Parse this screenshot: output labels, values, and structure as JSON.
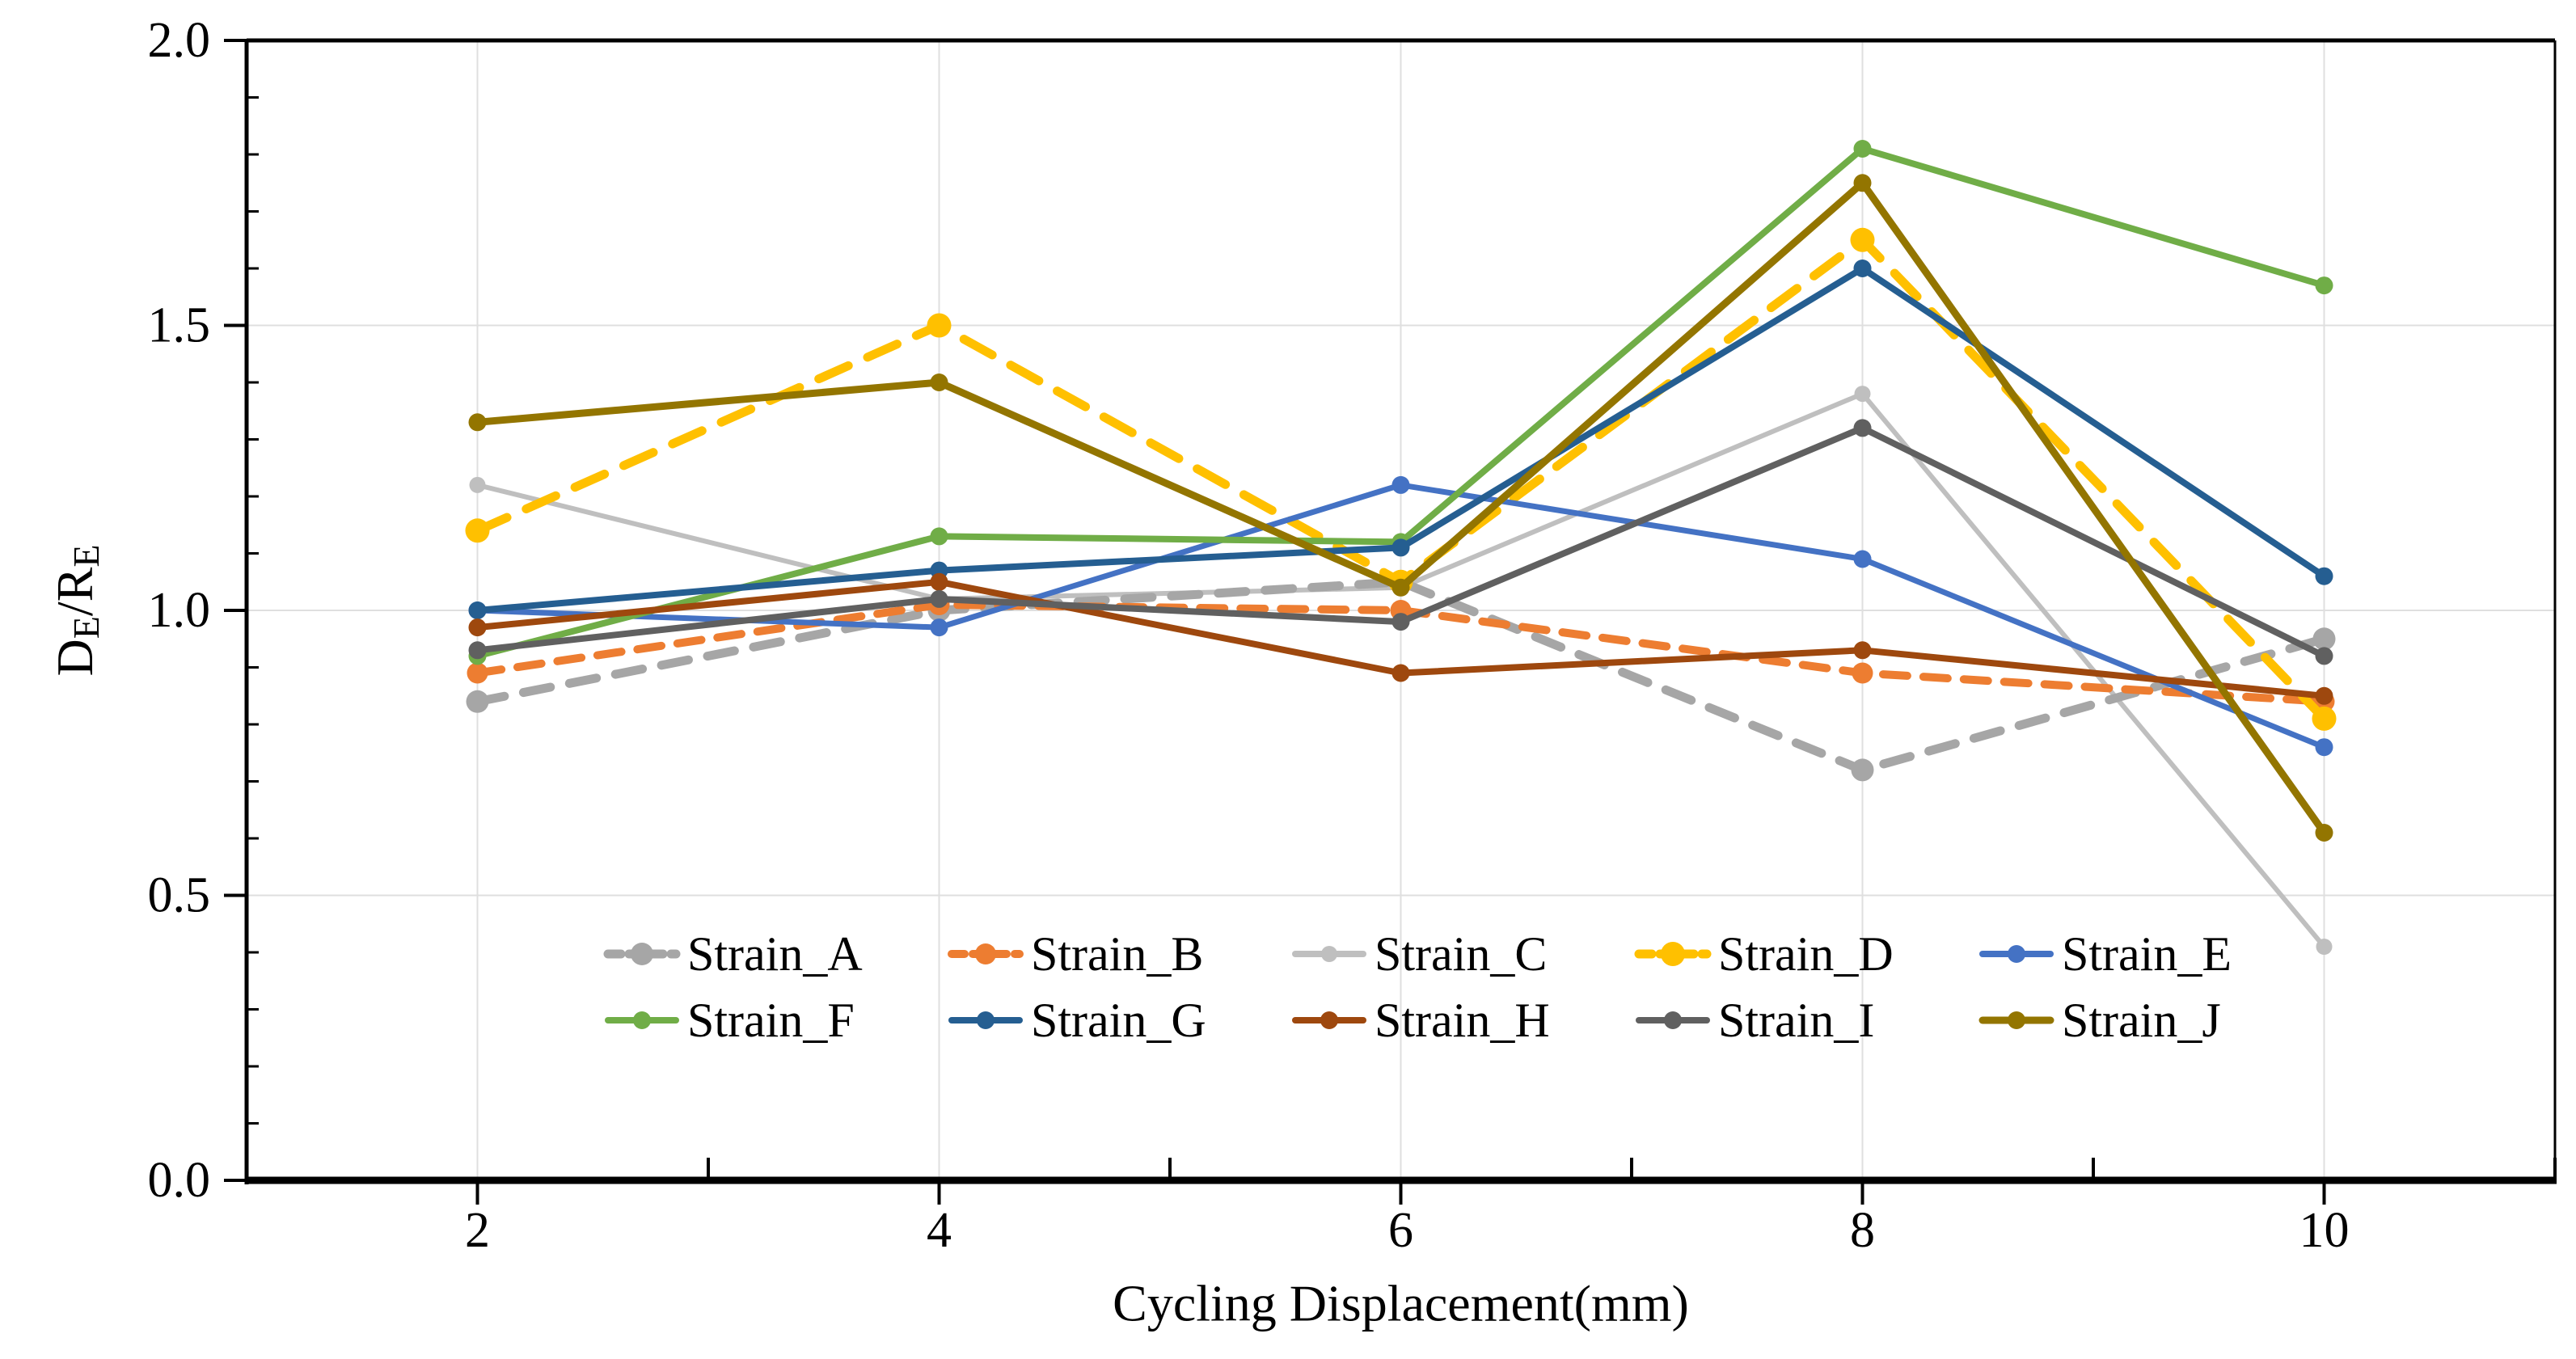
{
  "chart_data": {
    "type": "line",
    "title": "",
    "xlabel": "Cycling Displacement(mm)",
    "ylabel": "DE/RE",
    "ylabel_rich": [
      {
        "t": "D",
        "sub": false
      },
      {
        "t": "E",
        "sub": true
      },
      {
        "t": "/R",
        "sub": false
      },
      {
        "t": "E",
        "sub": true
      }
    ],
    "x": [
      2,
      4,
      6,
      8,
      10
    ],
    "xlim": [
      1,
      11
    ],
    "ylim": [
      0,
      2
    ],
    "xticks": {
      "major": [
        2,
        4,
        6,
        8,
        10
      ],
      "labels": [
        "2",
        "4",
        "6",
        "8",
        "10"
      ],
      "minor": [
        3,
        5,
        7,
        9,
        11
      ]
    },
    "yticks": {
      "major": [
        0,
        0.5,
        1,
        1.5,
        2
      ],
      "labels": [
        "0.0",
        "0.5",
        "1.0",
        "1.5",
        "2.0"
      ],
      "minor_step": 0.1
    },
    "grid": {
      "vertical": [
        2,
        4,
        6,
        8,
        10
      ],
      "horizontal": [
        0.5,
        1,
        1.5
      ],
      "color": "#DFDFDF",
      "axis_color": "#000000"
    },
    "series": [
      {
        "name": "Strain_A",
        "color": "#A6A6A6",
        "dash": "34 24",
        "width": 11,
        "marker_r": 14,
        "values": [
          0.84,
          1.0,
          1.05,
          0.72,
          0.95
        ]
      },
      {
        "name": "Strain_B",
        "color": "#ED7D31",
        "dash": "30 20",
        "width": 10,
        "marker_r": 13,
        "values": [
          0.89,
          1.01,
          1.0,
          0.89,
          0.84
        ]
      },
      {
        "name": "Strain_C",
        "color": "#BFBFBF",
        "dash": null,
        "width": 6,
        "marker_r": 10,
        "values": [
          1.22,
          1.02,
          1.04,
          1.38,
          0.41
        ]
      },
      {
        "name": "Strain_D",
        "color": "#FFC000",
        "dash": "40 26",
        "width": 11,
        "marker_r": 15,
        "values": [
          1.14,
          1.5,
          1.05,
          1.65,
          0.81
        ]
      },
      {
        "name": "Strain_E",
        "color": "#4472C4",
        "dash": null,
        "width": 7,
        "marker_r": 11,
        "values": [
          1.0,
          0.97,
          1.22,
          1.09,
          0.76
        ]
      },
      {
        "name": "Strain_F",
        "color": "#70AD47",
        "dash": null,
        "width": 8,
        "marker_r": 11,
        "values": [
          0.92,
          1.13,
          1.12,
          1.81,
          1.57
        ]
      },
      {
        "name": "Strain_G",
        "color": "#255E91",
        "dash": null,
        "width": 8,
        "marker_r": 11,
        "values": [
          1.0,
          1.07,
          1.11,
          1.6,
          1.06
        ]
      },
      {
        "name": "Strain_H",
        "color": "#9E480E",
        "dash": null,
        "width": 8,
        "marker_r": 11,
        "values": [
          0.97,
          1.05,
          0.89,
          0.93,
          0.85
        ]
      },
      {
        "name": "Strain_I",
        "color": "#606060",
        "dash": null,
        "width": 8,
        "marker_r": 11,
        "values": [
          0.93,
          1.02,
          0.98,
          1.32,
          0.92
        ]
      },
      {
        "name": "Strain_J",
        "color": "#937500",
        "dash": null,
        "width": 9,
        "marker_r": 11,
        "values": [
          1.33,
          1.4,
          1.04,
          1.75,
          0.61
        ]
      }
    ],
    "z_order": [
      "Strain_C",
      "Strain_A",
      "Strain_B",
      "Strain_D",
      "Strain_E",
      "Strain_F",
      "Strain_G",
      "Strain_H",
      "Strain_I",
      "Strain_J"
    ],
    "legend": {
      "position": "bottom-inside",
      "rows": [
        [
          "Strain_A",
          "Strain_B",
          "Strain_C",
          "Strain_D",
          "Strain_E"
        ],
        [
          "Strain_F",
          "Strain_G",
          "Strain_H",
          "Strain_I",
          "Strain_J"
        ]
      ]
    }
  }
}
